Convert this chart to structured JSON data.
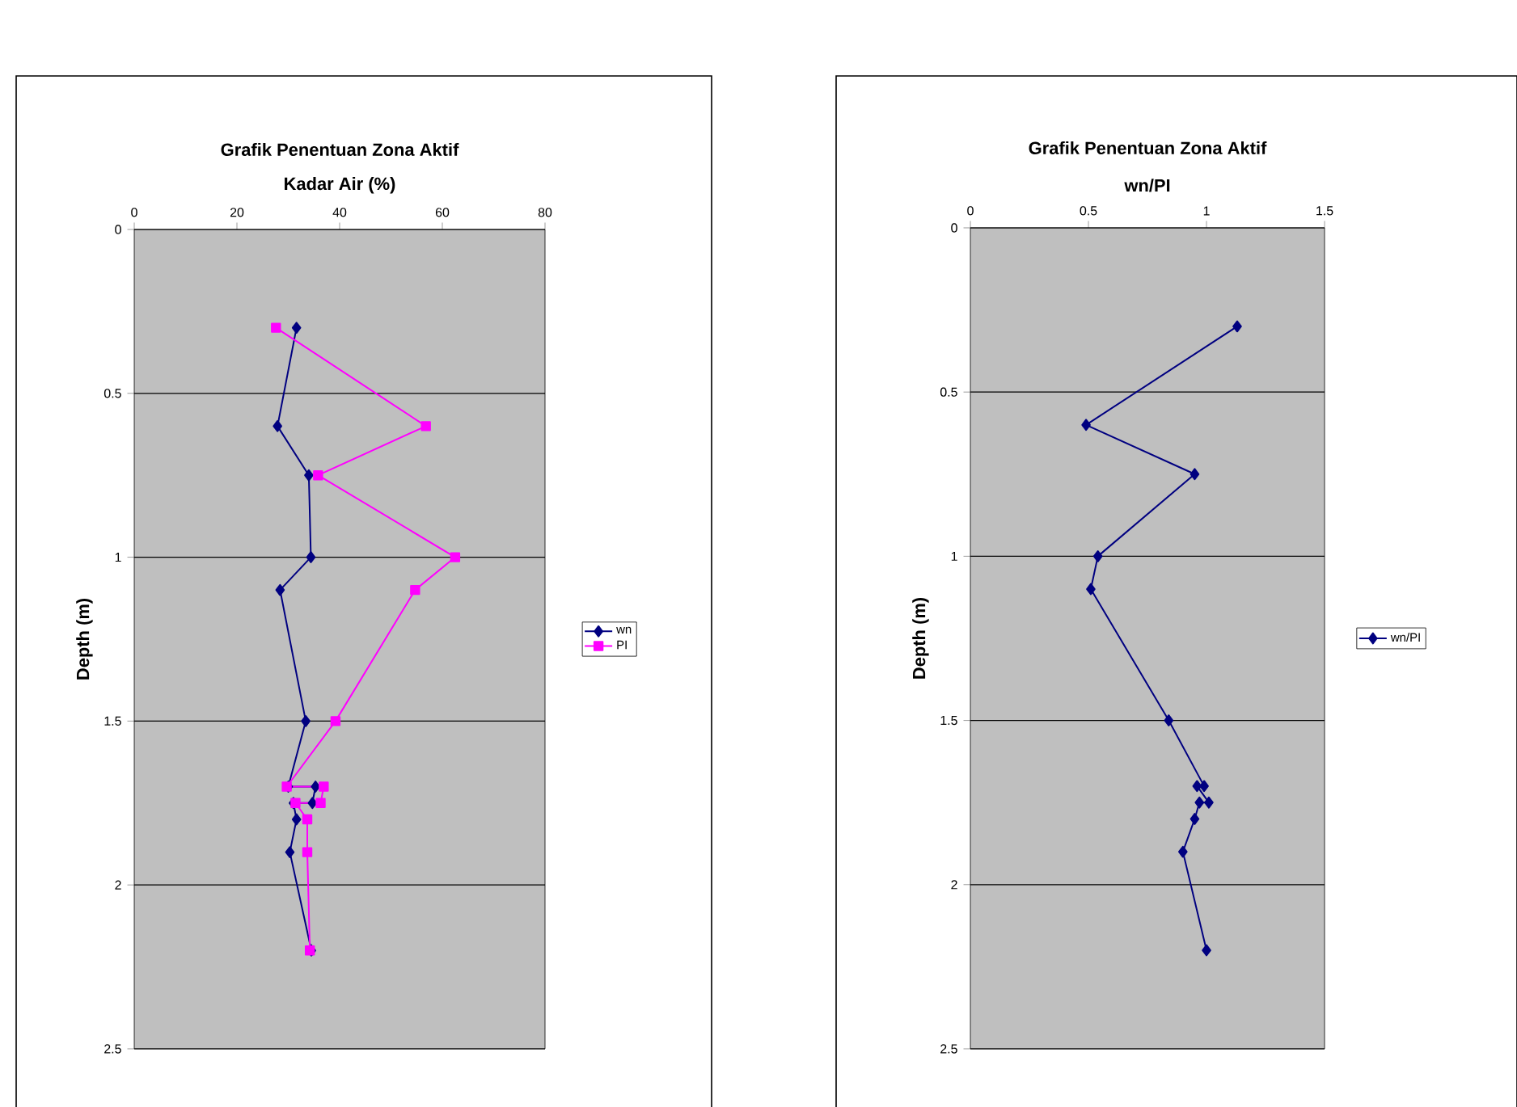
{
  "chart_data": [
    {
      "type": "line",
      "title": "Grafik Penentuan Zona Aktif",
      "xlabel": "Kadar Air (%)",
      "ylabel": "Depth (m)",
      "xlim": [
        0,
        80
      ],
      "xticks": [
        0,
        20,
        40,
        60,
        80
      ],
      "ylim": [
        2.5,
        0
      ],
      "yticks": [
        0,
        0.5,
        1,
        1.5,
        2,
        2.5
      ],
      "grid": "y",
      "legend": "right",
      "series": [
        {
          "name": "wn",
          "color": "#000080",
          "marker": "diamond",
          "x": [
            31.6,
            27.9,
            34.0,
            34.4,
            28.4,
            33.4,
            30.0,
            35.3,
            34.7,
            31.0,
            31.6,
            30.3,
            34.5
          ],
          "values": [
            0.3,
            0.6,
            0.75,
            1.0,
            1.1,
            1.5,
            1.7,
            1.7,
            1.75,
            1.75,
            1.8,
            1.9,
            2.2
          ]
        },
        {
          "name": "PI",
          "color": "#ff00ff",
          "marker": "square",
          "x": [
            27.6,
            56.8,
            35.8,
            62.5,
            54.7,
            39.2,
            29.7,
            36.9,
            36.3,
            31.4,
            33.7,
            33.7,
            34.2
          ],
          "values": [
            0.3,
            0.6,
            0.75,
            1.0,
            1.1,
            1.5,
            1.7,
            1.7,
            1.75,
            1.75,
            1.8,
            1.9,
            2.2
          ]
        }
      ]
    },
    {
      "type": "line",
      "title": "Grafik Penentuan Zona Aktif",
      "xlabel": "wn/PI",
      "ylabel": "Depth (m)",
      "xlim": [
        0,
        1.5
      ],
      "xticks": [
        0,
        0.5,
        1,
        1.5
      ],
      "ylim": [
        2.5,
        0
      ],
      "yticks": [
        0,
        0.5,
        1,
        1.5,
        2,
        2.5
      ],
      "grid": "y",
      "legend": "right",
      "series": [
        {
          "name": "wn/PI",
          "color": "#000080",
          "marker": "diamond",
          "x": [
            1.13,
            0.49,
            0.95,
            0.54,
            0.51,
            0.84,
            0.99,
            0.96,
            1.01,
            0.97,
            0.95,
            0.9,
            1.0
          ],
          "values": [
            0.3,
            0.6,
            0.75,
            1.0,
            1.1,
            1.5,
            1.7,
            1.7,
            1.75,
            1.75,
            1.8,
            1.9,
            2.2
          ]
        }
      ]
    }
  ]
}
